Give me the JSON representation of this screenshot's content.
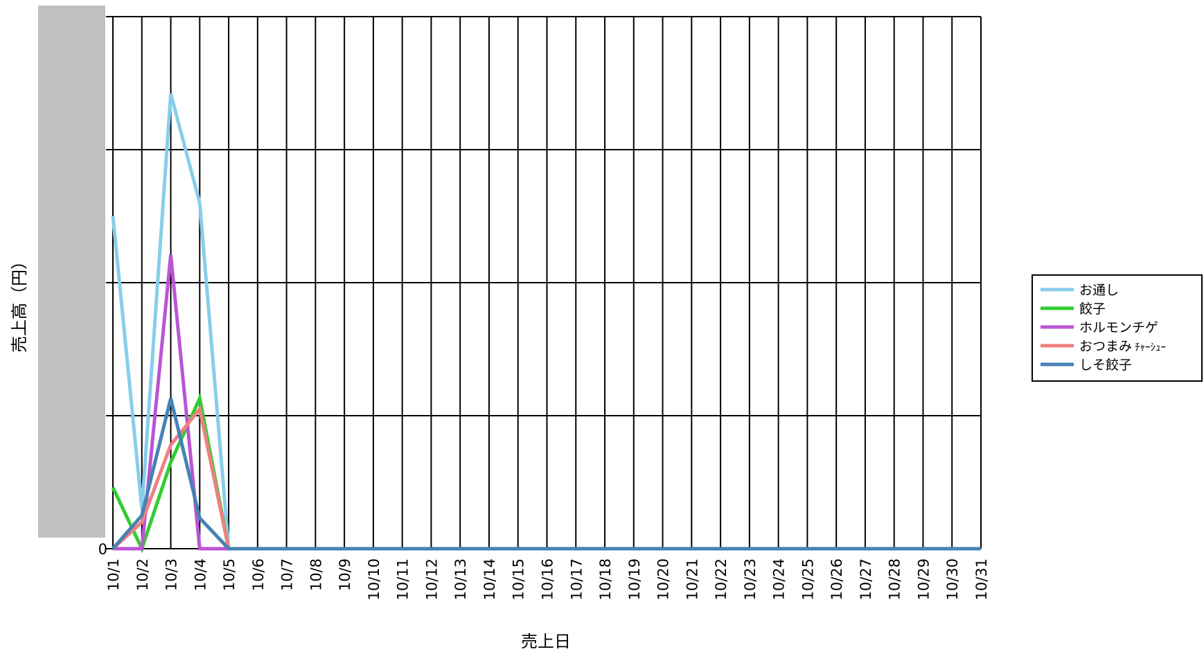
{
  "chart_data": {
    "type": "line",
    "xlabel": "売上日",
    "ylabel": "売上高（円）",
    "x": [
      "10/1",
      "10/2",
      "10/3",
      "10/4",
      "10/5",
      "10/6",
      "10/7",
      "10/8",
      "10/9",
      "10/10",
      "10/11",
      "10/12",
      "10/13",
      "10/14",
      "10/15",
      "10/16",
      "10/17",
      "10/18",
      "10/19",
      "10/20",
      "10/21",
      "10/22",
      "10/23",
      "10/24",
      "10/25",
      "10/26",
      "10/27",
      "10/28",
      "10/29",
      "10/30",
      "10/31"
    ],
    "y_ticks_visible": [
      "0"
    ],
    "ylim": [
      0,
      4
    ],
    "grid": true,
    "legend_position": "right",
    "series": [
      {
        "name": "お通し",
        "color": "#87CEEB",
        "values": [
          2.5,
          0.3,
          3.42,
          2.6,
          0,
          0,
          0,
          0,
          0,
          0,
          0,
          0,
          0,
          0,
          0,
          0,
          0,
          0,
          0,
          0,
          0,
          0,
          0,
          0,
          0,
          0,
          0,
          0,
          0,
          0,
          0
        ]
      },
      {
        "name": "餃子",
        "color": "#32CD32",
        "values": [
          0.46,
          0,
          0.65,
          1.13,
          0,
          0,
          0,
          0,
          0,
          0,
          0,
          0,
          0,
          0,
          0,
          0,
          0,
          0,
          0,
          0,
          0,
          0,
          0,
          0,
          0,
          0,
          0,
          0,
          0,
          0,
          0
        ]
      },
      {
        "name": "ホルモンチゲ",
        "color": "#BA55D3",
        "values": [
          0,
          0,
          2.21,
          0,
          0,
          0,
          0,
          0,
          0,
          0,
          0,
          0,
          0,
          0,
          0,
          0,
          0,
          0,
          0,
          0,
          0,
          0,
          0,
          0,
          0,
          0,
          0,
          0,
          0,
          0,
          0
        ]
      },
      {
        "name": "おつまみ",
        "name_suffix": "ﾁｬｰｼｭｰ",
        "color": "#F08080",
        "values": [
          0,
          0.2,
          0.78,
          1.05,
          0,
          0,
          0,
          0,
          0,
          0,
          0,
          0,
          0,
          0,
          0,
          0,
          0,
          0,
          0,
          0,
          0,
          0,
          0,
          0,
          0,
          0,
          0,
          0,
          0,
          0,
          0
        ]
      },
      {
        "name": "しそ餃子",
        "color": "#4682B4",
        "values": [
          0,
          0.25,
          1.13,
          0.23,
          0,
          0,
          0,
          0,
          0,
          0,
          0,
          0,
          0,
          0,
          0,
          0,
          0,
          0,
          0,
          0,
          0,
          0,
          0,
          0,
          0,
          0,
          0,
          0,
          0,
          0,
          0
        ]
      }
    ]
  }
}
